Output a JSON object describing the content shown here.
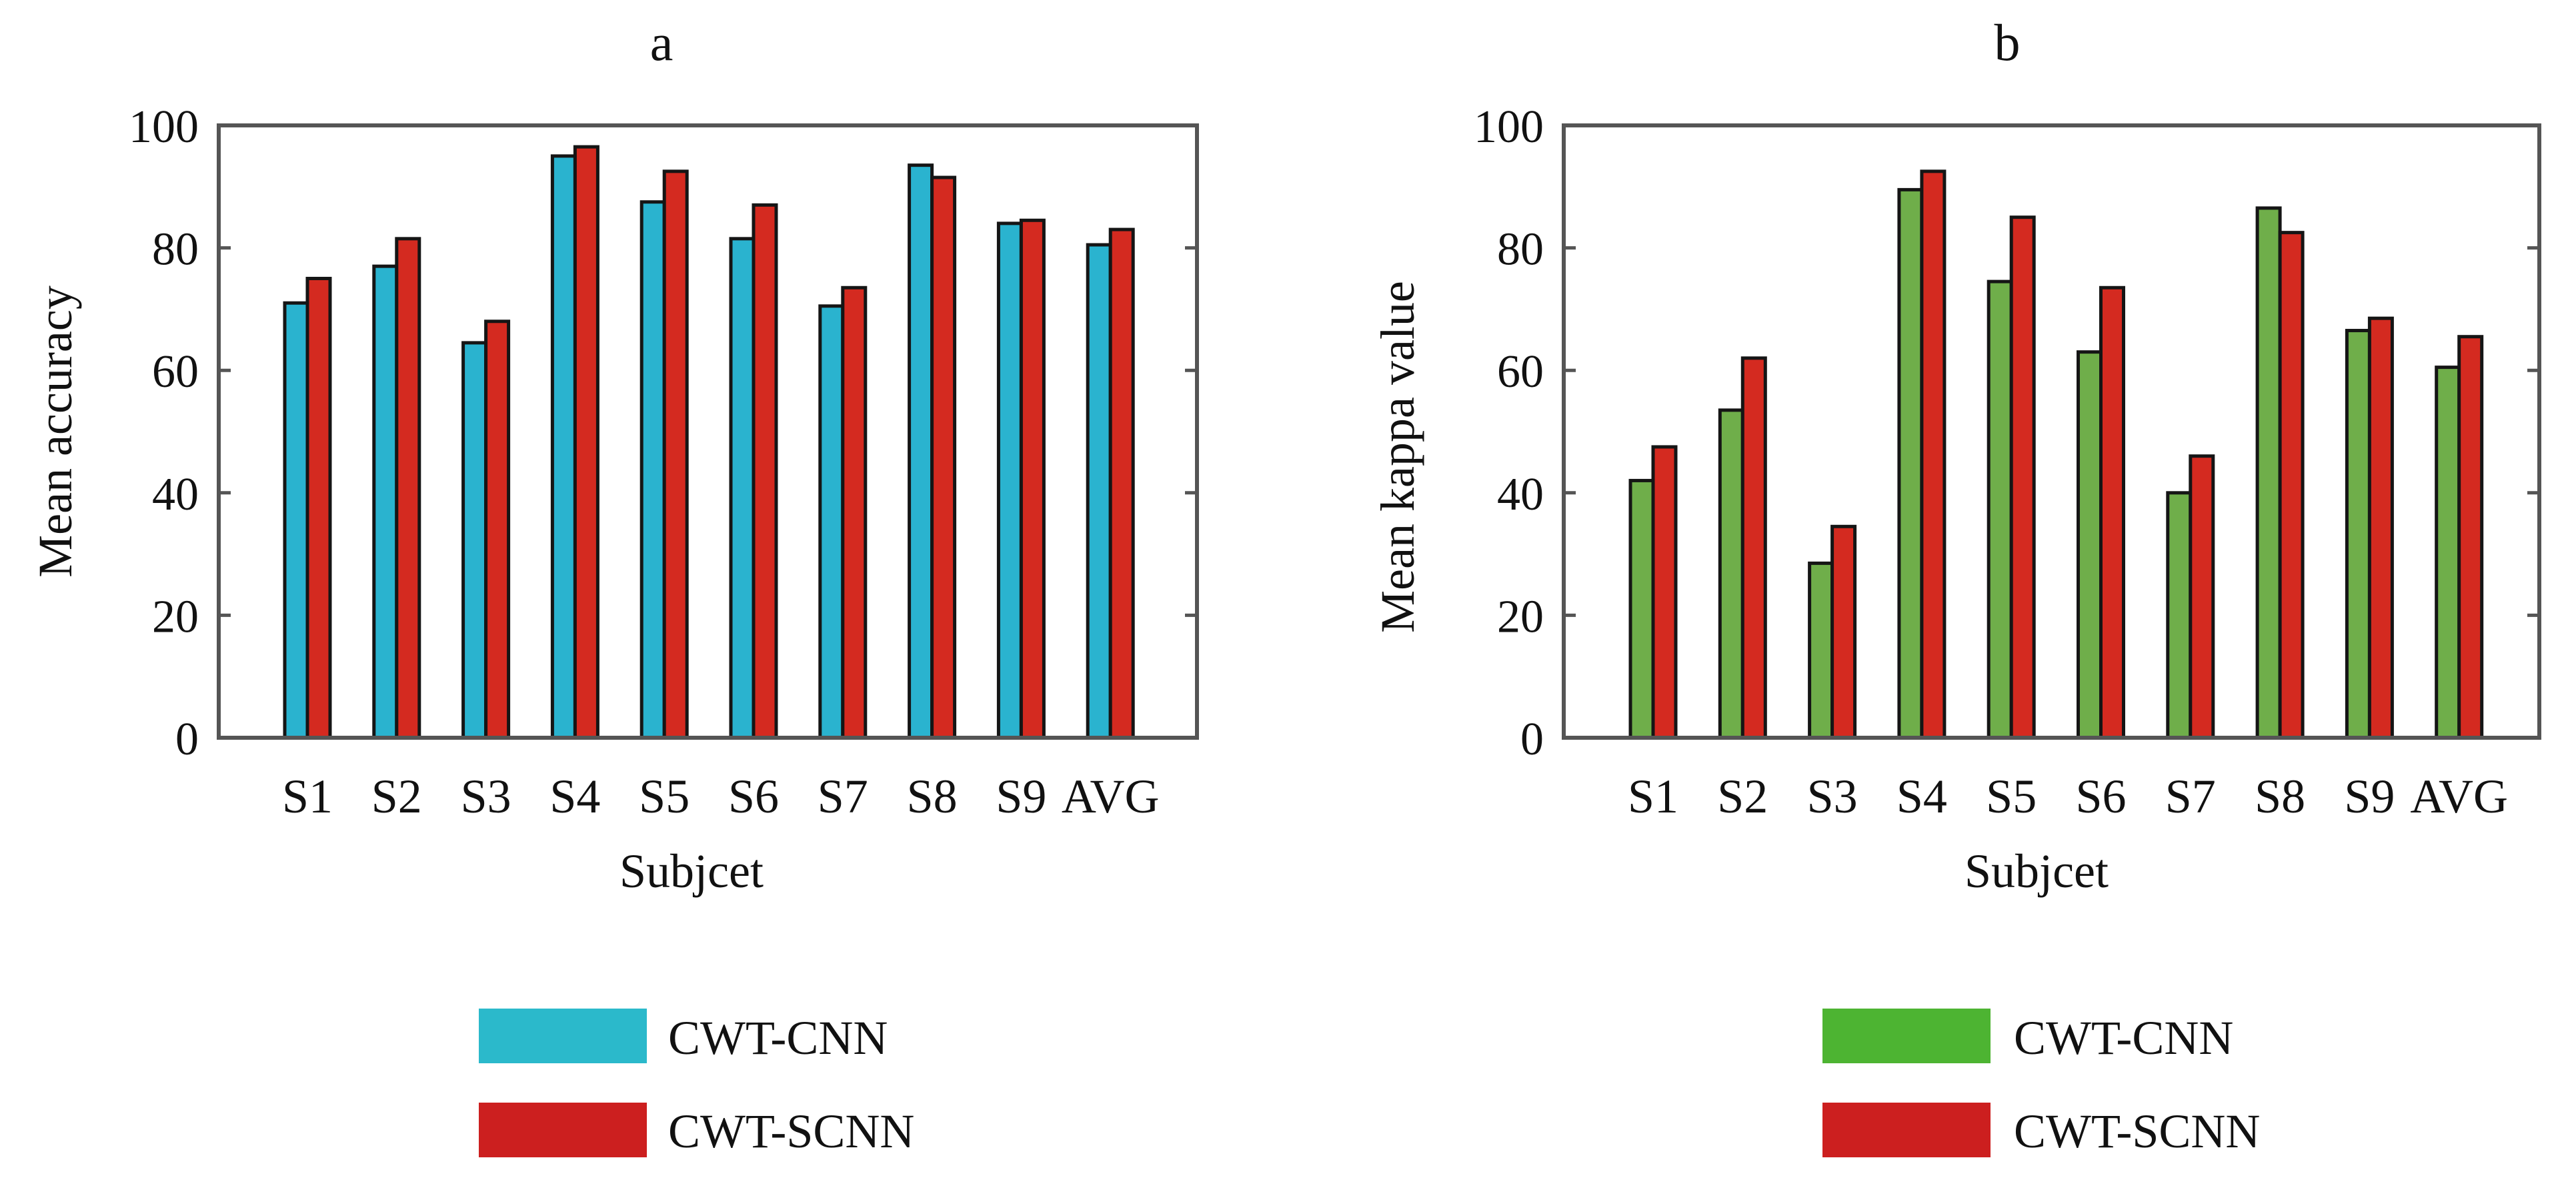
{
  "chart_data": [
    {
      "panel_id": "a",
      "type": "bar",
      "title": "a",
      "xlabel": "Subjcet",
      "ylabel": "Mean accuracy",
      "categories": [
        "S1",
        "S2",
        "S3",
        "S4",
        "S5",
        "S6",
        "S7",
        "S8",
        "S9",
        "AVG"
      ],
      "ylim": [
        0,
        100
      ],
      "yticks": [
        "0",
        "20",
        "40",
        "60",
        "80",
        "100"
      ],
      "grid": false,
      "series": [
        {
          "name": "CWT-CNN",
          "color": "#2ab3cf",
          "values": [
            71,
            77,
            64.5,
            95,
            87.5,
            81.5,
            70.5,
            93.5,
            84,
            80.5
          ]
        },
        {
          "name": "CWT-SCNN",
          "color": "#d42a20",
          "values": [
            75,
            81.5,
            68,
            96.5,
            92.5,
            87,
            73.5,
            91.5,
            84.5,
            83
          ]
        }
      ],
      "legend": {
        "placement": "below",
        "items": [
          {
            "label": "CWT-CNN",
            "color": "#2bb9cb"
          },
          {
            "label": "CWT-SCNN",
            "color": "#cc1f1f"
          }
        ]
      }
    },
    {
      "panel_id": "b",
      "type": "bar",
      "title": "b",
      "xlabel": "Subjcet",
      "ylabel": "Mean kappa value",
      "categories": [
        "S1",
        "S2",
        "S3",
        "S4",
        "S5",
        "S6",
        "S7",
        "S8",
        "S9",
        "AVG"
      ],
      "ylim": [
        0,
        100
      ],
      "yticks": [
        "0",
        "20",
        "40",
        "60",
        "80",
        "100"
      ],
      "grid": false,
      "series": [
        {
          "name": "CWT-CNN",
          "color": "#6fae4a",
          "values": [
            42,
            53.5,
            28.5,
            89.5,
            74.5,
            63,
            40,
            86.5,
            66.5,
            60.5
          ]
        },
        {
          "name": "CWT-SCNN",
          "color": "#d42a20",
          "values": [
            47.5,
            62,
            34.5,
            92.5,
            85,
            73.5,
            46,
            82.5,
            68.5,
            65.5
          ]
        }
      ],
      "legend": {
        "placement": "below",
        "items": [
          {
            "label": "CWT-CNN",
            "color": "#4db432"
          },
          {
            "label": "CWT-SCNN",
            "color": "#cc1f1f"
          }
        ]
      }
    }
  ]
}
